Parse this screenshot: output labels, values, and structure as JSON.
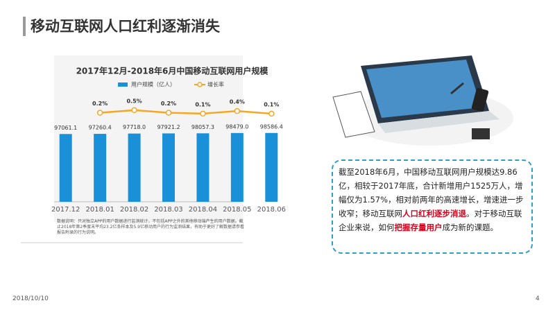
{
  "slide_title": "移动互联网人口红利逐渐消失",
  "chart_data": {
    "type": "bar_line",
    "title": "2017年12月-2018年6月中国移动互联网用户规模",
    "categories": [
      "2017.12",
      "2018.01",
      "2018.02",
      "2018.03",
      "2018.04",
      "2018.05",
      "2018.06"
    ],
    "series": [
      {
        "name": "用户规模（亿人）",
        "color": "#1a90d8",
        "type": "bar",
        "values": [
          97061.1,
          97260.4,
          97718.0,
          97921.2,
          98057.3,
          98479.0,
          98586.4
        ],
        "value_labels": [
          "97061.1",
          "97260.4",
          "97718.0",
          "97921.2",
          "98057.3",
          "98479.0",
          "98586.4"
        ]
      },
      {
        "name": "增长率",
        "color": "#f5a623",
        "type": "line",
        "axis": "y2",
        "values": [
          null,
          0.2,
          0.5,
          0.2,
          0.1,
          0.4,
          0.1
        ],
        "value_labels": [
          null,
          "0.2%",
          "0.5%",
          "0.2%",
          "0.1%",
          "0.4%",
          "0.1%"
        ]
      }
    ],
    "ylim": [
      0,
      150000
    ],
    "y2lim": [
      -10,
      2
    ],
    "legend": "top"
  },
  "note": "数据说明：只对独立APP的用户数据进行监测统计，不包括APP之外的其他移动端产生的用户数据。截止2018年第2季度末平均23.2亿条样本及5.9亿移动用户的行为监测结果，有助于更好了解数据请参看报告附录的行为说明。",
  "summary": [
    "截至2018年6月，中国移动互联网用户规模达9.86亿，相较于2017年底，合计新增用户1525万人，增幅仅为1.57%，相对前两年的高速增长，增速进一步收窄；移动互联网",
    "人口红利逐步消退",
    "。对于移动互联企业来说，如何",
    "把握存量用户",
    "成为新的课题。"
  ],
  "footer": {
    "date": "2018/10/10",
    "page": "4"
  }
}
